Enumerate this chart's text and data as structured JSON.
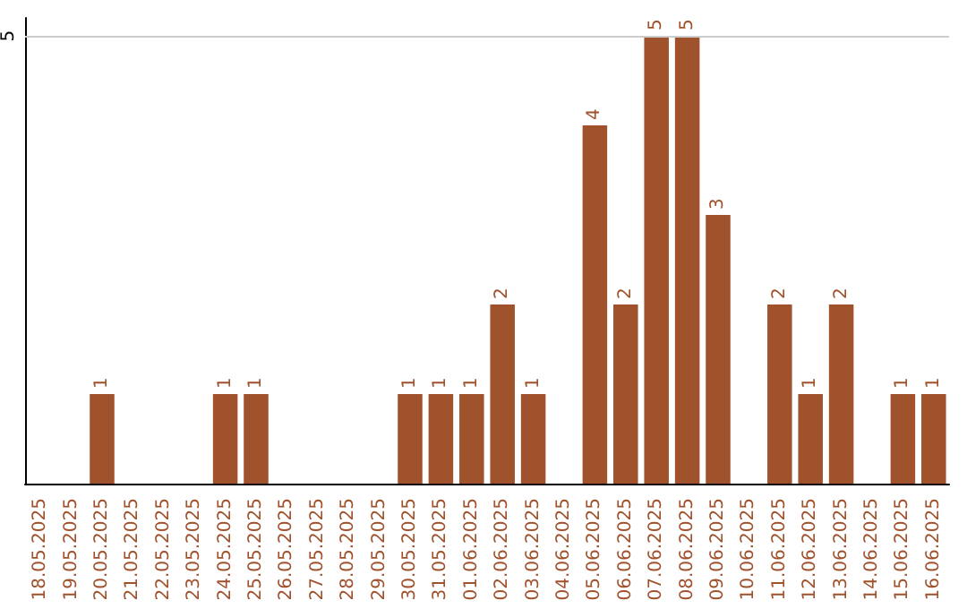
{
  "chart_data": {
    "type": "bar",
    "categories": [
      "18.05.2025",
      "19.05.2025",
      "20.05.2025",
      "21.05.2025",
      "22.05.2025",
      "23.05.2025",
      "24.05.2025",
      "25.05.2025",
      "26.05.2025",
      "27.05.2025",
      "28.05.2025",
      "29.05.2025",
      "30.05.2025",
      "31.05.2025",
      "01.06.2025",
      "02.06.2025",
      "03.06.2025",
      "04.06.2025",
      "05.06.2025",
      "06.06.2025",
      "07.06.2025",
      "08.06.2025",
      "09.06.2025",
      "10.06.2025",
      "11.06.2025",
      "12.06.2025",
      "13.06.2025",
      "14.06.2025",
      "15.06.2025",
      "16.06.2025"
    ],
    "values": [
      0,
      0,
      1,
      0,
      0,
      0,
      1,
      1,
      0,
      0,
      0,
      0,
      1,
      1,
      1,
      2,
      1,
      0,
      4,
      2,
      5,
      5,
      3,
      0,
      2,
      1,
      2,
      0,
      1,
      1
    ],
    "value_labels": [
      null,
      null,
      "1",
      null,
      null,
      null,
      "1",
      "1",
      null,
      null,
      null,
      null,
      "1",
      "1",
      "1",
      "2",
      "1",
      null,
      "4",
      "2",
      "5",
      "5",
      "3",
      null,
      "2",
      "1",
      "2",
      null,
      "1",
      "1"
    ],
    "color": "#a0522d",
    "ylim": [
      0,
      5.2
    ],
    "yticks": [
      5
    ],
    "grid": "y"
  }
}
